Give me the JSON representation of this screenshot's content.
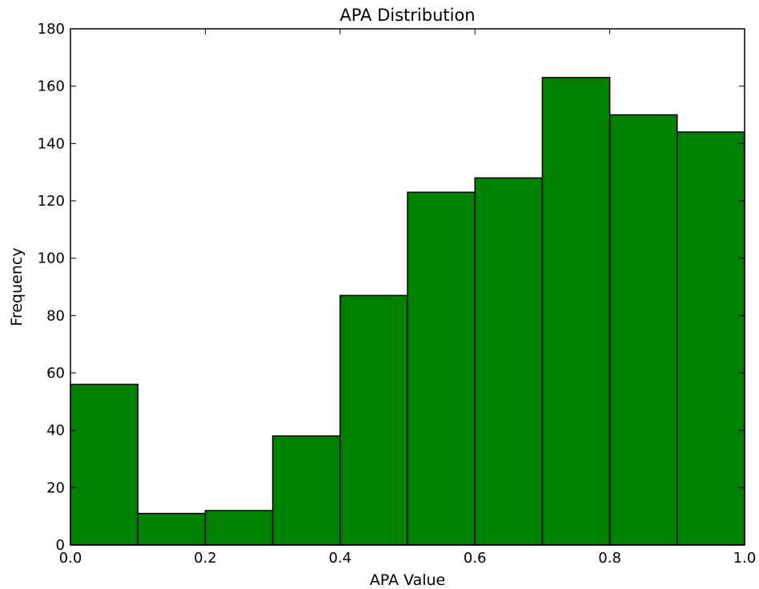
{
  "chart_data": {
    "type": "bar",
    "title": "APA Distribution",
    "xlabel": "APA Value",
    "ylabel": "Frequency",
    "bin_edges": [
      0.0,
      0.1,
      0.2,
      0.3,
      0.4,
      0.5,
      0.6,
      0.7,
      0.8,
      0.9,
      1.0
    ],
    "values": [
      56,
      11,
      12,
      38,
      87,
      123,
      128,
      163,
      150,
      144
    ],
    "xlim": [
      0.0,
      1.0
    ],
    "ylim": [
      0,
      180
    ],
    "xticks": [
      "0.0",
      "0.2",
      "0.4",
      "0.6",
      "0.8",
      "1.0"
    ],
    "yticks": [
      "0",
      "20",
      "40",
      "60",
      "80",
      "100",
      "120",
      "140",
      "160",
      "180"
    ],
    "grid": false,
    "bar_color": "#008000",
    "edge_color": "#000000"
  }
}
